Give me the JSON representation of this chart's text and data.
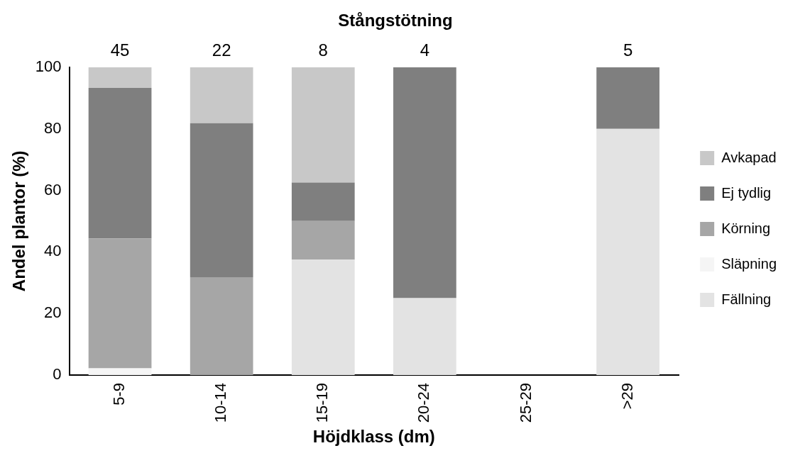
{
  "chart_data": {
    "type": "bar",
    "title": "Stångstötning",
    "xlabel": "Höjdklass (dm)",
    "ylabel": "Andel plantor (%)",
    "categories": [
      "5-9",
      "10-14",
      "15-19",
      "20-24",
      "25-29",
      ">29"
    ],
    "stacked": true,
    "series": [
      {
        "name": "Fällning",
        "color": "#e3e3e3",
        "values": [
          0,
          0,
          37.5,
          25,
          0,
          80
        ]
      },
      {
        "name": "Släpning",
        "color": "#f5f5f5",
        "values": [
          2.2,
          0,
          0,
          0,
          0,
          0
        ]
      },
      {
        "name": "Körning",
        "color": "#a6a6a6",
        "values": [
          42.2,
          31.8,
          12.5,
          0,
          0,
          0
        ]
      },
      {
        "name": "Ej tydlig",
        "color": "#7f7f7f",
        "values": [
          48.9,
          50,
          12.5,
          75,
          0,
          20
        ]
      },
      {
        "name": "Avkapad",
        "color": "#c8c8c8",
        "values": [
          6.7,
          18.2,
          37.5,
          0,
          0,
          0
        ]
      }
    ],
    "annotations": [
      {
        "text": "45",
        "x": "5-9",
        "y": 100
      },
      {
        "text": "22",
        "x": "10-14",
        "y": 100
      },
      {
        "text": "8",
        "x": "15-19",
        "y": 100
      },
      {
        "text": "4",
        "x": "20-24",
        "y": 100
      },
      {
        "text": "5",
        "x": ">29",
        "y": 100
      }
    ],
    "ylim": [
      0,
      100
    ],
    "yticks": [
      0,
      20,
      40,
      60,
      80,
      100
    ],
    "grid": false,
    "legend": "right"
  }
}
